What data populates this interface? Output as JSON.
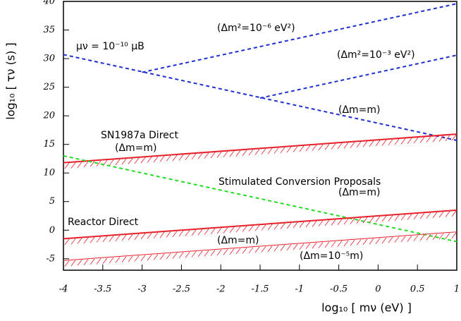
{
  "chart_data": {
    "type": "line",
    "xlabel": "log₁₀ [ mν (eV) ]",
    "ylabel": "log₁₀ [ τν (s) ]",
    "xlim": [
      -4,
      1
    ],
    "ylim": [
      -7,
      40
    ],
    "xticks": [
      -4,
      -3.5,
      -3,
      -2.5,
      -2,
      -1.5,
      -1,
      -0.5,
      0,
      0.5,
      1
    ],
    "yticks": [
      -5,
      0,
      5,
      10,
      15,
      20,
      25,
      30,
      35,
      40
    ],
    "series": [
      {
        "x": [
          -4,
          1
        ],
        "values": [
          30.7,
          15.7
        ],
        "color": "#1f2fd0",
        "dash": true
      },
      {
        "x": [
          -3,
          1
        ],
        "values": [
          27.6,
          39.6
        ],
        "color": "#1f2fd0",
        "dash": true
      },
      {
        "x": [
          -1.5,
          1
        ],
        "values": [
          23.1,
          30.6
        ],
        "color": "#1f2fd0",
        "dash": true
      },
      {
        "x": [
          -4,
          1
        ],
        "values": [
          11.8,
          16.8
        ],
        "color": "#e8202a",
        "hatch": true
      },
      {
        "x": [
          -4,
          1
        ],
        "values": [
          13,
          -2
        ],
        "color": "#22dd22",
        "dash": true
      },
      {
        "x": [
          -4,
          1
        ],
        "values": [
          -1.5,
          3.5
        ],
        "color": "#e8202a",
        "hatch": true
      },
      {
        "x": [
          -4,
          1
        ],
        "values": [
          -5.3,
          -0.3
        ],
        "color": "#e8202a",
        "hatch": true,
        "thin": true
      }
    ],
    "annotations": [
      {
        "text": "μν = 10⁻¹⁰ μB"
      },
      {
        "text": "(Δm²=10⁻⁶ eV²)"
      },
      {
        "text": "(Δm²=10⁻³ eV²)"
      },
      {
        "text": "(Δm=m)"
      },
      {
        "text": "SN1987a Direct"
      },
      {
        "text": "(Δm=m)"
      },
      {
        "text": "Stimulated Conversion Proposals"
      },
      {
        "text": "(Δm=m)"
      },
      {
        "text": "Reactor Direct"
      },
      {
        "text": "(Δm=m)"
      },
      {
        "text": "(Δm=10⁻⁵m)"
      }
    ]
  }
}
